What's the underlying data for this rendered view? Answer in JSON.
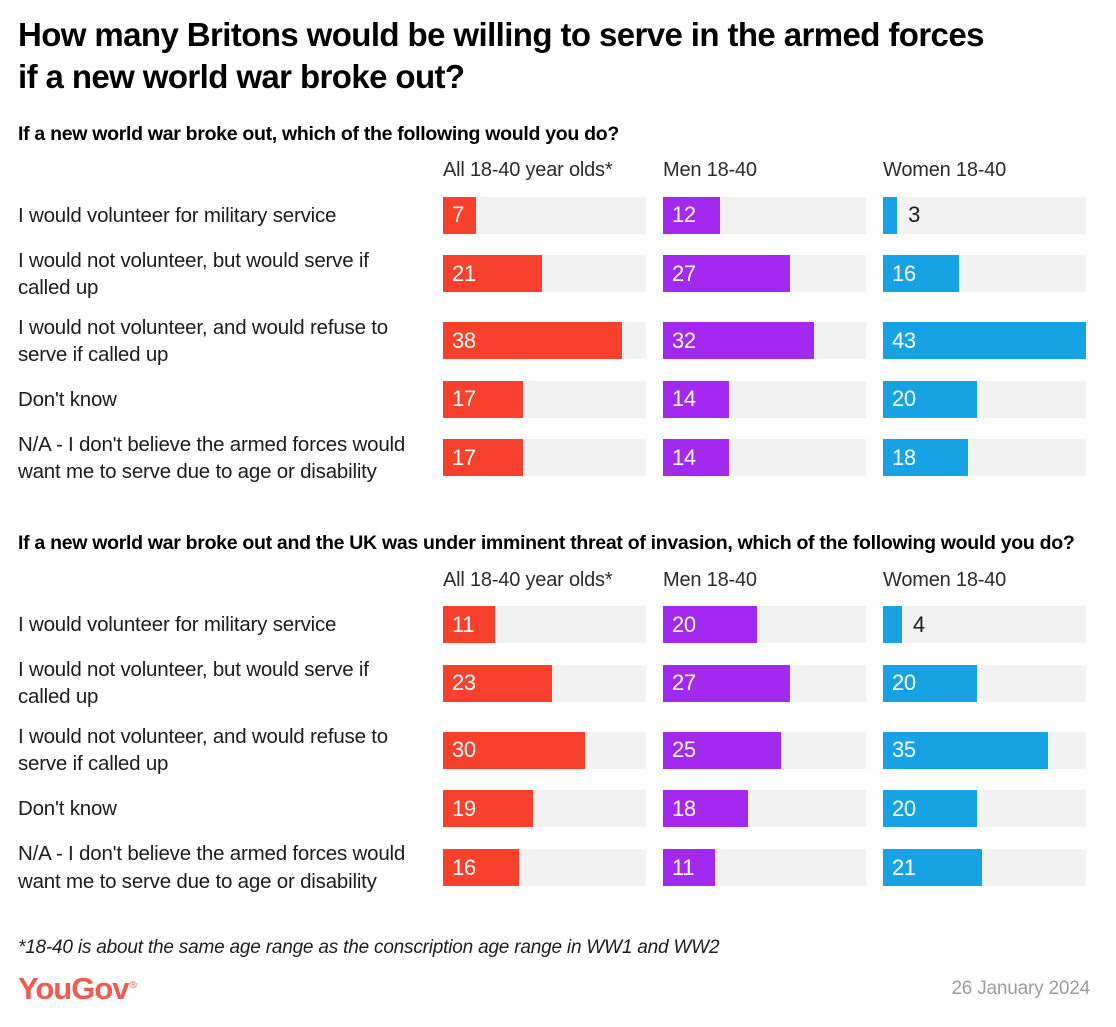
{
  "page": {
    "title": "How many Britons would be willing to serve in the armed forces if a new world war broke out?",
    "footnote": "*18-40 is about the same age range as the conscription age range in WW1 and WW2",
    "logo_text": "YouGov",
    "logo_registered_mark": "®",
    "date": "26 January 2024"
  },
  "colors": {
    "bar_red": "#f8412c",
    "bar_purple": "#a429ef",
    "bar_blue": "#17a2e3",
    "track_gray": "#f2f2f2",
    "logo_coral": "#ef5b50",
    "date_gray": "#9c9c9c",
    "text_dark": "#1a1a1a"
  },
  "chart_data": [
    {
      "type": "bar",
      "title": "If a new world war broke out, which of the following would you do?",
      "orientation": "horizontal",
      "xlim": [
        0,
        43
      ],
      "grid": false,
      "value_labels": "inside-left, dark and outside when bar too small",
      "categories": [
        "I would volunteer for military service",
        "I would not volunteer, but would serve if called up",
        "I would not volunteer, and would refuse to serve if called up",
        "Don't know",
        "N/A - I don't believe the armed forces would want me to serve due to age or disability"
      ],
      "series": [
        {
          "name": "All 18-40 year olds*",
          "color": "#f8412c",
          "values": [
            7,
            21,
            38,
            17,
            17
          ]
        },
        {
          "name": "Men 18-40",
          "color": "#a429ef",
          "values": [
            12,
            27,
            32,
            14,
            14
          ]
        },
        {
          "name": "Women 18-40",
          "color": "#17a2e3",
          "values": [
            3,
            16,
            43,
            20,
            18
          ]
        }
      ]
    },
    {
      "type": "bar",
      "title": "If a new world war broke out and the UK was under imminent threat of invasion, which of the following would you do?",
      "orientation": "horizontal",
      "xlim": [
        0,
        43
      ],
      "grid": false,
      "value_labels": "inside-left, dark and outside when bar too small",
      "categories": [
        "I would volunteer for military service",
        "I would not volunteer, but would serve if called up",
        "I would not volunteer, and would refuse to serve if called up",
        "Don't know",
        "N/A - I don't believe the armed forces would want me to serve due to age or disability"
      ],
      "series": [
        {
          "name": "All 18-40 year olds*",
          "color": "#f8412c",
          "values": [
            11,
            23,
            30,
            19,
            16
          ]
        },
        {
          "name": "Men 18-40",
          "color": "#a429ef",
          "values": [
            20,
            27,
            25,
            18,
            11
          ]
        },
        {
          "name": "Women 18-40",
          "color": "#17a2e3",
          "values": [
            4,
            20,
            35,
            20,
            21
          ]
        }
      ]
    }
  ]
}
